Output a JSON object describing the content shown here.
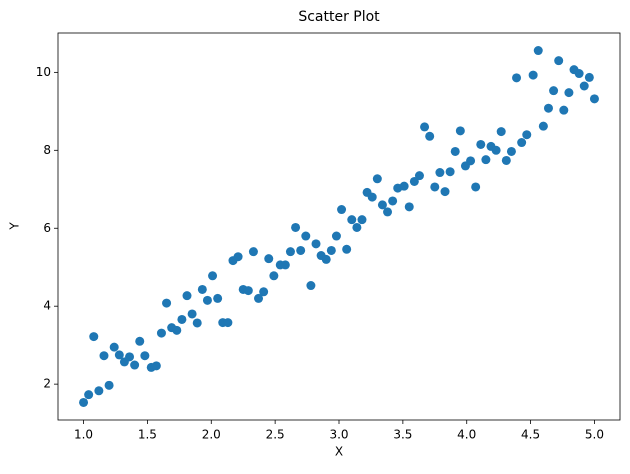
{
  "chart_data": {
    "type": "scatter",
    "title": "Scatter Plot",
    "x_label": "X",
    "y_label": "Y",
    "series": [
      {
        "color": "#1f77b4",
        "x": [
          1.0,
          1.04,
          1.08,
          1.12,
          1.16,
          1.2,
          1.24,
          1.28,
          1.32,
          1.36,
          1.4,
          1.44,
          1.48,
          1.53,
          1.57,
          1.61,
          1.65,
          1.69,
          1.73,
          1.77,
          1.81,
          1.85,
          1.89,
          1.93,
          1.97,
          2.01,
          2.05,
          2.09,
          2.13,
          2.17,
          2.21,
          2.25,
          2.29,
          2.33,
          2.37,
          2.41,
          2.45,
          2.49,
          2.54,
          2.58,
          2.62,
          2.66,
          2.7,
          2.74,
          2.78,
          2.82,
          2.86,
          2.9,
          2.94,
          2.98,
          3.02,
          3.06,
          3.1,
          3.14,
          3.18,
          3.22,
          3.26,
          3.3,
          3.34,
          3.38,
          3.42,
          3.46,
          3.51,
          3.55,
          3.59,
          3.63,
          3.67,
          3.71,
          3.75,
          3.79,
          3.83,
          3.87,
          3.91,
          3.95,
          3.99,
          4.03,
          4.07,
          4.11,
          4.15,
          4.19,
          4.23,
          4.27,
          4.31,
          4.35,
          4.39,
          4.43,
          4.47,
          4.52,
          4.56,
          4.6,
          4.64,
          4.68,
          4.72,
          4.76,
          4.8,
          4.84,
          4.88,
          4.92,
          4.96,
          5.0
        ],
        "values": [
          1.53,
          1.73,
          3.22,
          1.83,
          2.73,
          1.97,
          2.95,
          2.75,
          2.57,
          2.7,
          2.49,
          3.1,
          2.73,
          2.43,
          2.47,
          3.31,
          4.08,
          3.45,
          3.38,
          3.66,
          4.27,
          3.8,
          3.57,
          4.43,
          4.15,
          4.78,
          4.2,
          3.58,
          3.58,
          5.17,
          5.27,
          4.43,
          4.4,
          5.4,
          4.2,
          4.37,
          5.22,
          4.78,
          5.06,
          5.06,
          5.4,
          6.02,
          5.43,
          5.8,
          4.53,
          5.6,
          5.3,
          5.2,
          5.43,
          5.8,
          6.48,
          5.46,
          6.22,
          6.02,
          6.22,
          6.92,
          6.8,
          7.27,
          6.6,
          6.42,
          6.7,
          7.03,
          7.08,
          6.55,
          7.2,
          7.35,
          8.6,
          8.36,
          7.06,
          7.43,
          6.94,
          7.45,
          7.97,
          8.5,
          7.6,
          7.73,
          7.06,
          8.15,
          7.76,
          8.1,
          8.0,
          8.48,
          7.74,
          7.97,
          9.86,
          8.2,
          8.4,
          9.93,
          10.56,
          8.62,
          9.08,
          9.53,
          10.3,
          9.03,
          9.48,
          10.07,
          9.97,
          9.65,
          9.87,
          9.32
        ]
      }
    ],
    "xlim": [
      0.8,
      5.2
    ],
    "ylim": [
      1.08,
      11.01
    ],
    "xticks": [
      {
        "value": 1.0,
        "label": "1.0"
      },
      {
        "value": 1.5,
        "label": "1.5"
      },
      {
        "value": 2.0,
        "label": "2.0"
      },
      {
        "value": 2.5,
        "label": "2.5"
      },
      {
        "value": 3.0,
        "label": "3.0"
      },
      {
        "value": 3.5,
        "label": "3.5"
      },
      {
        "value": 4.0,
        "label": "4.0"
      },
      {
        "value": 4.5,
        "label": "4.5"
      },
      {
        "value": 5.0,
        "label": "5.0"
      }
    ],
    "yticks": [
      2,
      4,
      6,
      8,
      10
    ],
    "grid": false
  }
}
